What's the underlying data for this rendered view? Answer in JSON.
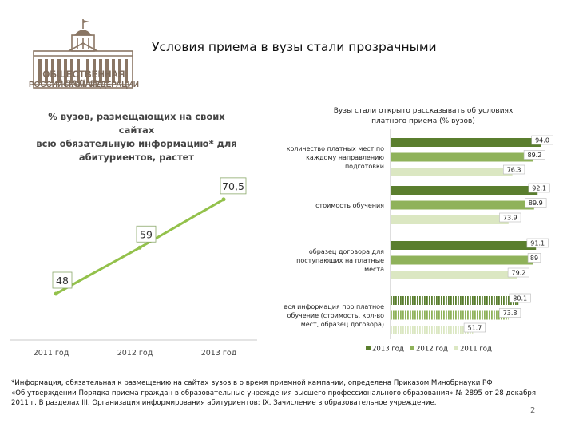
{
  "logo": {
    "name_line1": "ОБЩЕСТВЕННАЯ ПАЛАТА",
    "name_line2": "РОССИЙСКОЙ ФЕДЕРАЦИИ"
  },
  "slide_title": "Условия приема  в вузы стали прозрачными",
  "footnote": {
    "line1": "*Информация, обязательная к размещению на сайтах вузов в о время приемной кампании, определена Приказом Минобрнауки РФ",
    "line2": "«Об утверждении Порядка приема граждан в образовательные учреждения  высшего профессионального образования» № 2895 от 28 декабря",
    "line3": "2011 г.  В разделах III. Организация информирования абитуриентов; IX. Зачисление в образовательное учреждение."
  },
  "page_number": "2",
  "colors": {
    "line": "#93c14b",
    "s2013": "#5a7e2e",
    "s2012": "#8fb25a",
    "s2011": "#dbe7c2"
  },
  "chart_data": [
    {
      "type": "line",
      "title": "% вузов, размещающих на своих сайтах всю обязательную информацию* для абитуриентов, растет",
      "title_lines": [
        "% вузов, размещающих на своих сайтах",
        "всю обязательную информацию* для",
        "абитуриентов, растет"
      ],
      "categories": [
        "2011 год",
        "2012 год",
        "2013 год"
      ],
      "values": [
        48,
        59,
        70.5
      ],
      "value_labels": [
        "48",
        "59",
        "70,5"
      ],
      "ylim": [
        40,
        80
      ]
    },
    {
      "type": "bar",
      "orientation": "horizontal",
      "title": "Вузы стали открыто рассказывать об условиях платного приема  (% вузов)",
      "title_lines": [
        "Вузы стали открыто рассказывать об условиях",
        "платного приема  (% вузов)"
      ],
      "categories": [
        [
          "количество платных мест по",
          "каждому направлению",
          "подготовки"
        ],
        [
          "стоимость обучения"
        ],
        [
          "образец договора для",
          "поступающих на платные",
          "места"
        ],
        [
          "вся информация про платное",
          "обучение (стоимость, кол-во",
          "мест, образец договора)"
        ]
      ],
      "series": [
        {
          "name": "2013 год",
          "values": [
            94.0,
            92.1,
            91.1,
            80.1
          ],
          "labels": [
            "94.0",
            "92.1",
            "91.1",
            "80.1"
          ]
        },
        {
          "name": "2012 год",
          "values": [
            89.2,
            89.9,
            89,
            73.8
          ],
          "labels": [
            "89.2",
            "89.9",
            "89",
            "73.8"
          ]
        },
        {
          "name": "2011 год",
          "values": [
            76.3,
            73.9,
            79.2,
            51.7
          ],
          "labels": [
            "76.3",
            "73.9",
            "79.2",
            "51.7"
          ]
        }
      ],
      "xlim": [
        0,
        100
      ]
    }
  ]
}
